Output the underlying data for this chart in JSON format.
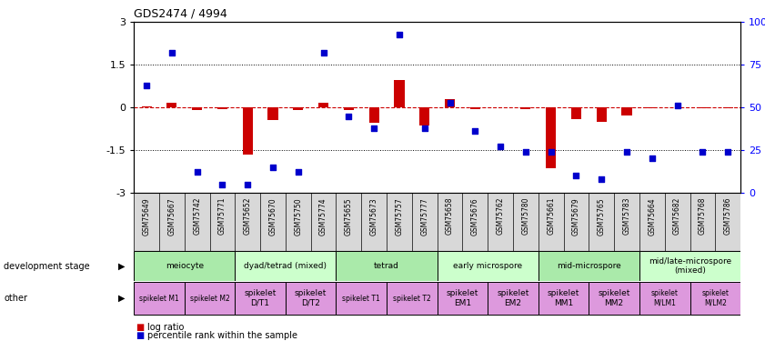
{
  "title": "GDS2474 / 4994",
  "samples": [
    "GSM75649",
    "GSM75667",
    "GSM75742",
    "GSM75771",
    "GSM75652",
    "GSM75670",
    "GSM75750",
    "GSM75774",
    "GSM75655",
    "GSM75673",
    "GSM75757",
    "GSM75777",
    "GSM75658",
    "GSM75676",
    "GSM75762",
    "GSM75780",
    "GSM75661",
    "GSM75679",
    "GSM75765",
    "GSM75783",
    "GSM75664",
    "GSM75682",
    "GSM75768",
    "GSM75786"
  ],
  "log_ratio": [
    0.05,
    0.15,
    -0.1,
    -0.05,
    -1.65,
    -0.45,
    -0.08,
    0.18,
    -0.08,
    -0.55,
    0.95,
    -0.65,
    0.28,
    -0.05,
    0.02,
    -0.05,
    -2.15,
    -0.42,
    -0.52,
    -0.28,
    -0.04,
    0.0,
    -0.04,
    -0.04
  ],
  "percentile": [
    63,
    82,
    12,
    5,
    5,
    15,
    12,
    82,
    45,
    38,
    93,
    38,
    53,
    36,
    27,
    24,
    24,
    10,
    8,
    24,
    20,
    51,
    24,
    24
  ],
  "ylim": [
    -3,
    3
  ],
  "ylim_right": [
    0,
    100
  ],
  "yticks_left": [
    -3,
    -1.5,
    0,
    1.5,
    3
  ],
  "yticks_right": [
    0,
    25,
    50,
    75,
    100
  ],
  "hlines": [
    1.5,
    -1.5
  ],
  "bar_color": "#cc0000",
  "dot_color": "#0000cc",
  "zero_line_color": "#cc0000",
  "tick_bg_color": "#d8d8d8",
  "development_stage_groups": [
    {
      "label": "meiocyte",
      "start": 0,
      "end": 4,
      "color": "#aaeaaa"
    },
    {
      "label": "dyad/tetrad (mixed)",
      "start": 4,
      "end": 8,
      "color": "#ccffcc"
    },
    {
      "label": "tetrad",
      "start": 8,
      "end": 12,
      "color": "#aaeaaa"
    },
    {
      "label": "early microspore",
      "start": 12,
      "end": 16,
      "color": "#ccffcc"
    },
    {
      "label": "mid-microspore",
      "start": 16,
      "end": 20,
      "color": "#aaeaaa"
    },
    {
      "label": "mid/late-microspore\n(mixed)",
      "start": 20,
      "end": 24,
      "color": "#ccffcc"
    }
  ],
  "other_groups": [
    {
      "label": "spikelet M1",
      "start": 0,
      "end": 2,
      "color": "#dd99dd",
      "fontsize": 5.5
    },
    {
      "label": "spikelet M2",
      "start": 2,
      "end": 4,
      "color": "#dd99dd",
      "fontsize": 5.5
    },
    {
      "label": "spikelet\nD/T1",
      "start": 4,
      "end": 6,
      "color": "#dd99dd",
      "fontsize": 6.5
    },
    {
      "label": "spikelet\nD/T2",
      "start": 6,
      "end": 8,
      "color": "#dd99dd",
      "fontsize": 6.5
    },
    {
      "label": "spikelet T1",
      "start": 8,
      "end": 10,
      "color": "#dd99dd",
      "fontsize": 5.5
    },
    {
      "label": "spikelet T2",
      "start": 10,
      "end": 12,
      "color": "#dd99dd",
      "fontsize": 5.5
    },
    {
      "label": "spikelet\nEM1",
      "start": 12,
      "end": 14,
      "color": "#dd99dd",
      "fontsize": 6.5
    },
    {
      "label": "spikelet\nEM2",
      "start": 14,
      "end": 16,
      "color": "#dd99dd",
      "fontsize": 6.5
    },
    {
      "label": "spikelet\nMM1",
      "start": 16,
      "end": 18,
      "color": "#dd99dd",
      "fontsize": 6.5
    },
    {
      "label": "spikelet\nMM2",
      "start": 18,
      "end": 20,
      "color": "#dd99dd",
      "fontsize": 6.5
    },
    {
      "label": "spikelet\nM/LM1",
      "start": 20,
      "end": 22,
      "color": "#dd99dd",
      "fontsize": 5.5
    },
    {
      "label": "spikelet\nM/LM2",
      "start": 22,
      "end": 24,
      "color": "#dd99dd",
      "fontsize": 5.5
    }
  ],
  "legend_bar_color": "#cc0000",
  "legend_dot_color": "#0000cc",
  "background_color": "#ffffff",
  "fig_width": 8.41,
  "fig_height": 3.75,
  "dpi": 100
}
